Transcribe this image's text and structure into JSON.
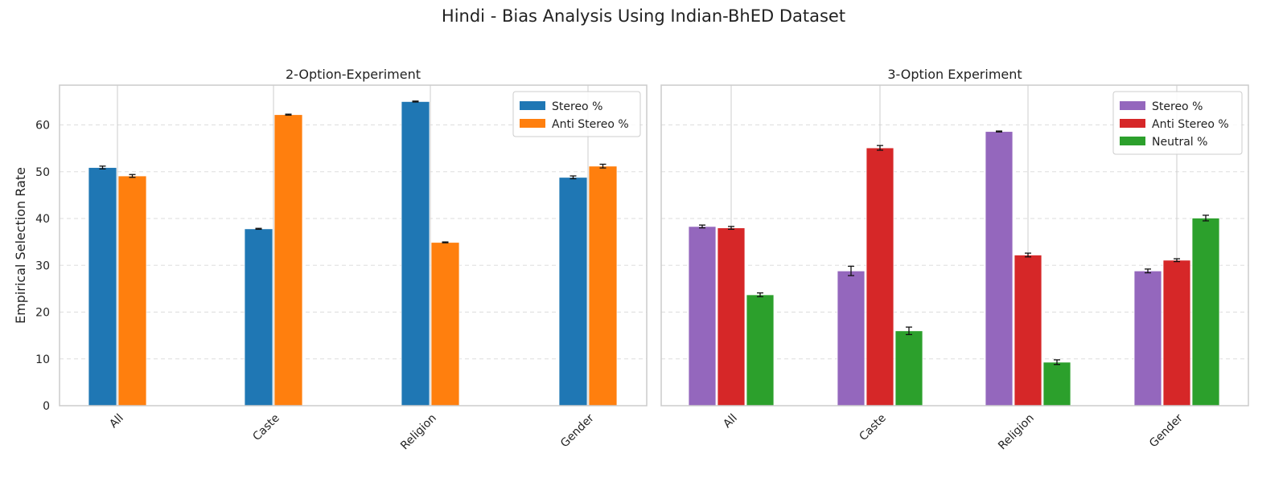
{
  "figure": {
    "suptitle": "Hindi - Bias Analysis Using Indian-BhED Dataset"
  },
  "chart_data": [
    {
      "type": "bar",
      "title": "2-Option-Experiment",
      "xlabel": "",
      "ylabel": "Empirical Selection Rate",
      "ylim": [
        0,
        68.5
      ],
      "yticks": [
        0,
        10,
        20,
        30,
        40,
        50,
        60
      ],
      "grid": true,
      "legend_position": "top-right",
      "categories": [
        "All",
        "Caste",
        "Religion",
        "Gender"
      ],
      "series": [
        {
          "name": "Stereo %",
          "color": "#1f77b4",
          "values": [
            50.9,
            37.8,
            65.0,
            48.8
          ],
          "errors": [
            0.3,
            0.1,
            0.1,
            0.3
          ]
        },
        {
          "name": "Anti Stereo %",
          "color": "#ff7f0e",
          "values": [
            49.1,
            62.2,
            34.9,
            51.2
          ],
          "errors": [
            0.3,
            0.1,
            0.1,
            0.4
          ]
        }
      ]
    },
    {
      "type": "bar",
      "title": "3-Option Experiment",
      "xlabel": "",
      "ylabel": "",
      "ylim": [
        0,
        68.5
      ],
      "yticks": [
        0,
        10,
        20,
        30,
        40,
        50,
        60
      ],
      "grid": true,
      "legend_position": "top-right",
      "categories": [
        "All",
        "Caste",
        "Religion",
        "Gender"
      ],
      "series": [
        {
          "name": "Stereo %",
          "color": "#9467bd",
          "values": [
            38.3,
            28.8,
            58.6,
            28.8
          ],
          "errors": [
            0.3,
            1.0,
            0.1,
            0.4
          ]
        },
        {
          "name": "Anti Stereo %",
          "color": "#d62728",
          "values": [
            38.0,
            55.1,
            32.2,
            31.1
          ],
          "errors": [
            0.3,
            0.5,
            0.4,
            0.3
          ]
        },
        {
          "name": "Neutral %",
          "color": "#2ca02c",
          "values": [
            23.7,
            16.0,
            9.3,
            40.1
          ],
          "errors": [
            0.4,
            0.8,
            0.5,
            0.6
          ]
        }
      ]
    }
  ]
}
